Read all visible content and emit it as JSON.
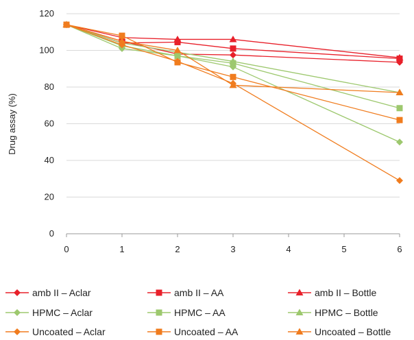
{
  "chart_data": {
    "type": "line",
    "title": "",
    "xlabel": "",
    "ylabel": "Drug assay (%)",
    "x": [
      0,
      1,
      2,
      3,
      6
    ],
    "xlim": [
      0,
      6
    ],
    "xticks": [
      0,
      1,
      2,
      3,
      4,
      5,
      6
    ],
    "ylim": [
      0,
      120
    ],
    "yticks": [
      0,
      20,
      40,
      60,
      80,
      100,
      120
    ],
    "grid": "horizontal",
    "legend_position": "bottom",
    "series": [
      {
        "name": "amb II – Aclar",
        "marker": "diamond",
        "color": "#e8202a",
        "values": [
          114,
          105,
          98,
          97.5,
          93.5
        ]
      },
      {
        "name": "amb II – AA",
        "marker": "square",
        "color": "#e8202a",
        "values": [
          114,
          104,
          104.5,
          101,
          95.5
        ]
      },
      {
        "name": "amb II – Bottle",
        "marker": "triangle",
        "color": "#e8202a",
        "values": [
          114,
          107,
          106,
          106,
          96
        ]
      },
      {
        "name": "HPMC – Aclar",
        "marker": "diamond",
        "color": "#9dc86e",
        "values": [
          114,
          101,
          97,
          91,
          50
        ]
      },
      {
        "name": "HPMC – AA",
        "marker": "square",
        "color": "#9dc86e",
        "values": [
          114,
          102.5,
          97,
          93,
          68.5
        ]
      },
      {
        "name": "HPMC – Bottle",
        "marker": "triangle",
        "color": "#9dc86e",
        "values": [
          114,
          104,
          99,
          94,
          77
        ]
      },
      {
        "name": "Uncoated – Aclar",
        "marker": "diamond",
        "color": "#f07c1e",
        "values": [
          114,
          103,
          94,
          82,
          29
        ]
      },
      {
        "name": "Uncoated – AA",
        "marker": "square",
        "color": "#f07c1e",
        "values": [
          114,
          108,
          93.5,
          85.5,
          62
        ]
      },
      {
        "name": "Uncoated – Bottle",
        "marker": "triangle",
        "color": "#f07c1e",
        "values": [
          114,
          105,
          100,
          81,
          77
        ]
      }
    ]
  }
}
